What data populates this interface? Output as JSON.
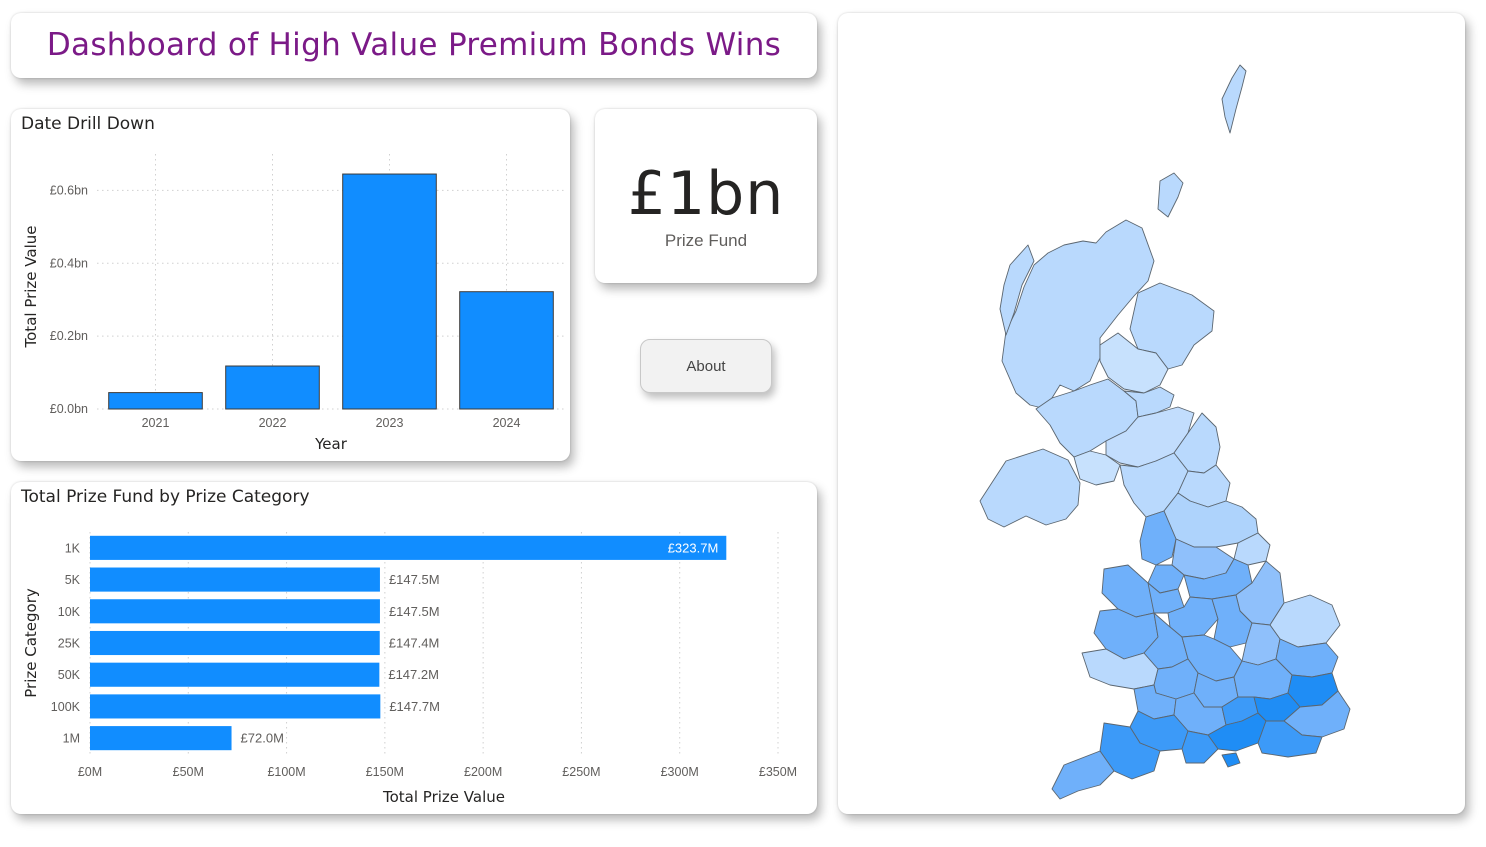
{
  "title": "Dashboard of High Value Premium Bonds Wins",
  "kpi": {
    "value": "£1bn",
    "label": "Prize Fund"
  },
  "about_button": {
    "label": "About"
  },
  "colors": {
    "bar": "#118dff",
    "title": "#7b1a87",
    "map_light": "#b9d9fd",
    "map_mid": "#6fb0fa",
    "map_dark": "#1f8df5"
  },
  "date_chart": {
    "title": "Date Drill Down",
    "chart_data": {
      "type": "bar",
      "categories": [
        "2021",
        "2022",
        "2023",
        "2024"
      ],
      "values": [
        0.045,
        0.118,
        0.645,
        0.322
      ],
      "xlabel": "Year",
      "ylabel": "Total Prize Value",
      "ylim": [
        0,
        0.7
      ],
      "yticks": [
        0,
        0.2,
        0.4,
        0.6
      ],
      "ytick_labels": [
        "£0.0bn",
        "£0.2bn",
        "£0.4bn",
        "£0.6bn"
      ],
      "grid": true
    }
  },
  "prize_chart": {
    "title": "Total Prize Fund by Prize Category",
    "chart_data": {
      "type": "bar",
      "orientation": "horizontal",
      "categories": [
        "1K",
        "5K",
        "10K",
        "25K",
        "50K",
        "100K",
        "1M"
      ],
      "values": [
        323.7,
        147.5,
        147.5,
        147.4,
        147.2,
        147.7,
        72.0
      ],
      "value_labels": [
        "£323.7M",
        "£147.5M",
        "£147.5M",
        "£147.4M",
        "£147.2M",
        "£147.7M",
        "£72.0M"
      ],
      "xlabel": "Total Prize Value",
      "ylabel": "Prize Category",
      "xlim": [
        0,
        350
      ],
      "xticks": [
        0,
        50,
        100,
        150,
        200,
        250,
        300,
        350
      ],
      "xtick_labels": [
        "£0M",
        "£50M",
        "£100M",
        "£150M",
        "£200M",
        "£250M",
        "£300M",
        "£350M"
      ],
      "grid": true
    }
  }
}
